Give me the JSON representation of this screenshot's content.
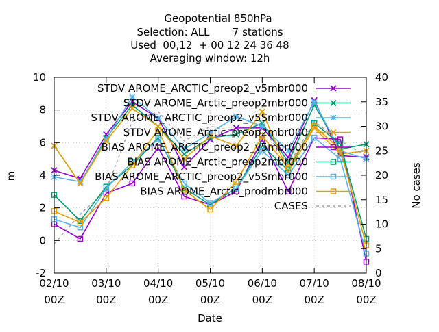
{
  "chart_data": {
    "type": "line",
    "title_lines": [
      "Geopotential 850hPa",
      "Selection: ALL       7 stations",
      "Used  00,12  + 00 12 24 36 48",
      "Averaging window: 12h"
    ],
    "xlabel": "Date",
    "ylabel": "m",
    "y2label": "No cases",
    "ylim": [
      -2,
      10
    ],
    "y2lim": [
      0,
      40
    ],
    "xlim": [
      0,
      12
    ],
    "grid": "dotted",
    "legend_position": "top-right",
    "yticks": [
      "-2",
      "0",
      "2",
      "4",
      "6",
      "8",
      "10"
    ],
    "y2ticks": [
      "0",
      "5",
      "10",
      "15",
      "20",
      "25",
      "30",
      "35",
      "40"
    ],
    "xticks": [
      {
        "pos": 0,
        "line1": "02/10",
        "line2": "00Z"
      },
      {
        "pos": 2,
        "line1": "03/10",
        "line2": "00Z"
      },
      {
        "pos": 4,
        "line1": "04/10",
        "line2": "00Z"
      },
      {
        "pos": 6,
        "line1": "05/10",
        "line2": "00Z"
      },
      {
        "pos": 8,
        "line1": "06/10",
        "line2": "00Z"
      },
      {
        "pos": 10,
        "line1": "07/10",
        "line2": "00Z"
      },
      {
        "pos": 12,
        "line1": "08/10",
        "line2": "00Z"
      }
    ],
    "x": [
      0,
      1,
      2,
      3,
      4,
      5,
      6,
      7,
      8,
      9,
      10,
      11,
      12
    ],
    "series": [
      {
        "name": "STDV AROME_ARCTIC_preop2_v5mbr000",
        "color": "#9400d3",
        "marker": "x",
        "values": [
          4.3,
          3.8,
          6.5,
          8.5,
          7.5,
          4.5,
          6.2,
          6.9,
          6.9,
          5.1,
          8.6,
          5.2,
          5.1
        ]
      },
      {
        "name": "STDV AROME_Arctic_preop2mbr000",
        "color": "#009e73",
        "marker": "x",
        "values": [
          5.8,
          3.5,
          6.3,
          8.3,
          7.0,
          5.3,
          6.3,
          6.5,
          7.2,
          4.8,
          8.3,
          5.6,
          5.9
        ]
      },
      {
        "name": "STDV AROME_ARCTIC_preop2_v5Smbr000",
        "color": "#56b4e9",
        "marker": "star",
        "values": [
          3.9,
          3.6,
          6.2,
          8.8,
          7.5,
          5.6,
          6.6,
          7.6,
          7.0,
          5.5,
          8.5,
          5.5,
          5.0
        ]
      },
      {
        "name": "STDV AROME_Arctic_preop2mbr000",
        "color": "#e69f00",
        "marker": "x",
        "values": [
          5.8,
          3.5,
          6.1,
          8.1,
          7.0,
          5.0,
          6.4,
          5.8,
          7.9,
          4.2,
          6.9,
          5.3,
          5.5
        ]
      },
      {
        "name": "BIAS AROME_ARCTIC_preop2_v5mbr000",
        "color": "#9400d3",
        "marker": "square",
        "values": [
          1.0,
          0.1,
          2.9,
          3.5,
          5.7,
          2.7,
          2.2,
          3.0,
          6.2,
          3.0,
          6.3,
          6.2,
          -1.3
        ]
      },
      {
        "name": "BIAS AROME_Arctic_preop2mbr000",
        "color": "#009e73",
        "marker": "square",
        "values": [
          2.8,
          1.2,
          3.3,
          4.6,
          6.3,
          3.2,
          2.2,
          3.2,
          5.8,
          4.3,
          7.2,
          5.9,
          0.1
        ]
      },
      {
        "name": "BIAS AROME_ARCTIC_preop2_v5Smbr000",
        "color": "#56b4e9",
        "marker": "square",
        "values": [
          1.3,
          0.8,
          3.2,
          4.8,
          6.2,
          3.5,
          2.3,
          3.2,
          5.5,
          4.0,
          6.3,
          5.0,
          -0.8
        ]
      },
      {
        "name": "BIAS AROME_Arctic_prodmbr000",
        "color": "#e69f00",
        "marker": "square",
        "values": [
          1.8,
          1.1,
          2.6,
          4.6,
          6.8,
          3.1,
          1.9,
          3.6,
          6.4,
          4.5,
          7.0,
          5.6,
          -0.3
        ]
      }
    ],
    "cases": {
      "name": "CASES",
      "color": "#a0a0a0",
      "axis": "y2",
      "values": [
        6,
        12,
        17,
        31,
        33,
        27,
        30,
        29,
        30,
        22,
        31,
        27,
        24
      ]
    },
    "legend_labels": [
      "STDV AROME_ARCTIC_preop2_v5mbr000",
      "STDV AROME_Arctic_preop2mbr000",
      "STDV AROME_ARCTIC_preop2_v5Smbr000",
      "STDV AROME_Arctic_preop2mbr000",
      "BIAS AROME_ARCTIC_preop2_v5mbr000",
      "BIAS AROME_Arctic_preop2mbr000",
      "BIAS AROME_ARCTIC_preop2_v5Smbr000",
      "BIAS AROME_Arctic_prodmbr000",
      "CASES"
    ]
  }
}
